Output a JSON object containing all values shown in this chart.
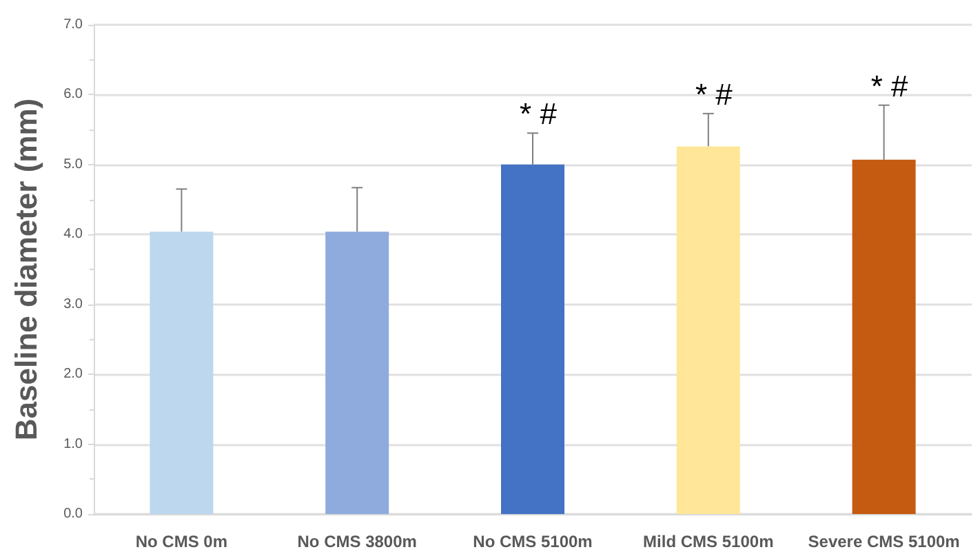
{
  "chart_data": {
    "type": "bar",
    "ylabel": "Baseline diameter (mm)",
    "categories": [
      "No CMS 0m",
      "No CMS 3800m",
      "No CMS 5100m",
      "Mild CMS 5100m",
      "Severe CMS 5100m"
    ],
    "values": [
      4.04,
      4.04,
      5.0,
      5.26,
      5.07
    ],
    "colors": [
      "#bdd7ee",
      "#8faadc",
      "#4472c4",
      "#ffe699",
      "#c55a11"
    ],
    "errors": [
      [
        4.04,
        4.65
      ],
      [
        4.04,
        4.67
      ],
      [
        5.0,
        5.45
      ],
      [
        5.26,
        5.73
      ],
      [
        5.07,
        5.85
      ]
    ],
    "ylim": [
      0,
      7
    ],
    "yticks": [
      {
        "value": 0,
        "label": "0.0"
      },
      {
        "value": 1,
        "label": "1.0"
      },
      {
        "value": 2,
        "label": "2.0"
      },
      {
        "value": 3,
        "label": "3.0"
      },
      {
        "value": 4,
        "label": "4.0"
      },
      {
        "value": 5,
        "label": "5.0"
      },
      {
        "value": 6,
        "label": "6.0"
      },
      {
        "value": 7,
        "label": "7.0"
      }
    ],
    "grid": "y",
    "annotations": [
      {
        "text": "* #",
        "x": "No CMS 5100m",
        "y": 5.45
      },
      {
        "text": "* #",
        "x": "Mild CMS 5100m",
        "y": 5.73
      },
      {
        "text": "* #",
        "x": "Severe CMS 5100m",
        "y": 5.85
      }
    ]
  }
}
